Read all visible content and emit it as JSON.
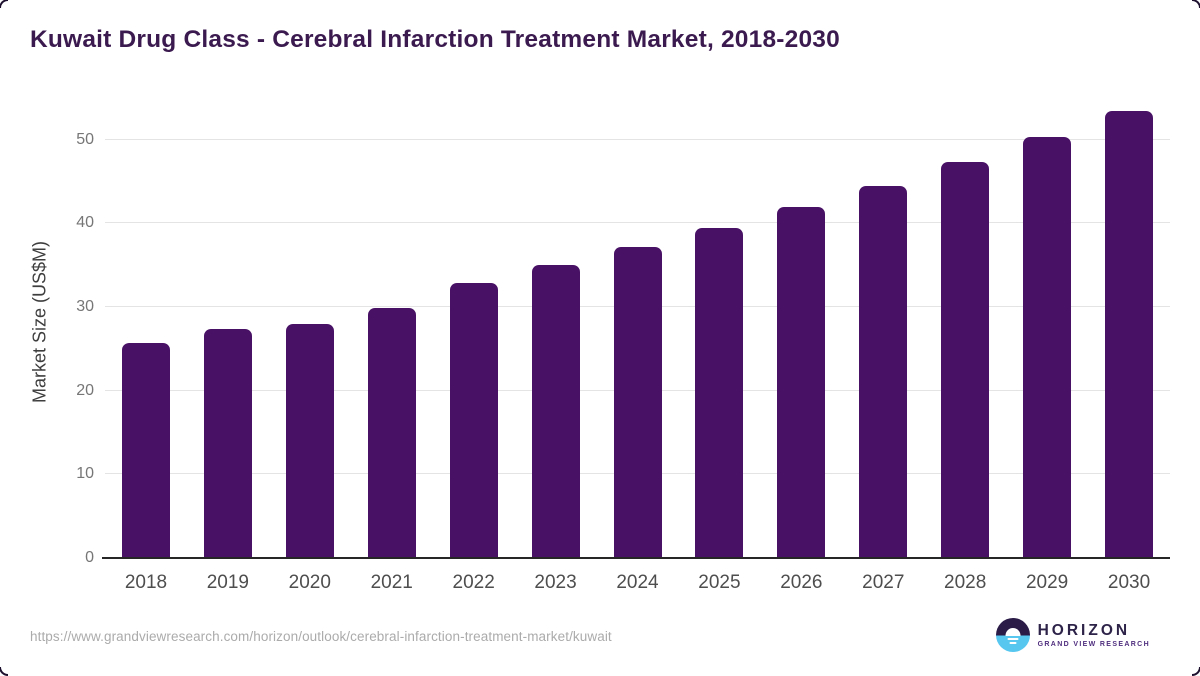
{
  "title": "Kuwait Drug Class - Cerebral Infarction Treatment Market, 2018-2030",
  "footer": {
    "source_url": "https://www.grandviewresearch.com/horizon/outlook/cerebral-infarction-treatment-market/kuwait"
  },
  "logo": {
    "name": "HORIZON",
    "subtitle": "GRAND VIEW RESEARCH"
  },
  "colors": {
    "bar": "#491166",
    "title_text": "#3b1a4f",
    "gridline": "#e4e4e4",
    "axis_line": "#262626",
    "y_tick_text": "#767676",
    "x_label_text": "#4e4e4e",
    "url_text": "#ababab",
    "logo_dark": "#2a1b47",
    "logo_blue": "#57c7f0",
    "logo_name_text": "#2d2349",
    "logo_subtitle_text": "#4f2e7e"
  },
  "chart_data": {
    "type": "bar",
    "title": "Kuwait Drug Class - Cerebral Infarction Treatment Market, 2018-2030",
    "categories": [
      "2018",
      "2019",
      "2020",
      "2021",
      "2022",
      "2023",
      "2024",
      "2025",
      "2026",
      "2027",
      "2028",
      "2029",
      "2030"
    ],
    "values": [
      25.7,
      27.4,
      28.0,
      29.9,
      32.9,
      35.0,
      37.2,
      39.5,
      42.0,
      44.5,
      47.3,
      50.3,
      53.5
    ],
    "xlabel": "",
    "ylabel": "Market Size (US$M)",
    "ylim": [
      0,
      55
    ],
    "yticks": [
      0,
      10,
      20,
      30,
      40,
      50
    ],
    "grid": true,
    "legend_position": "none",
    "bar_color": "#491166"
  }
}
